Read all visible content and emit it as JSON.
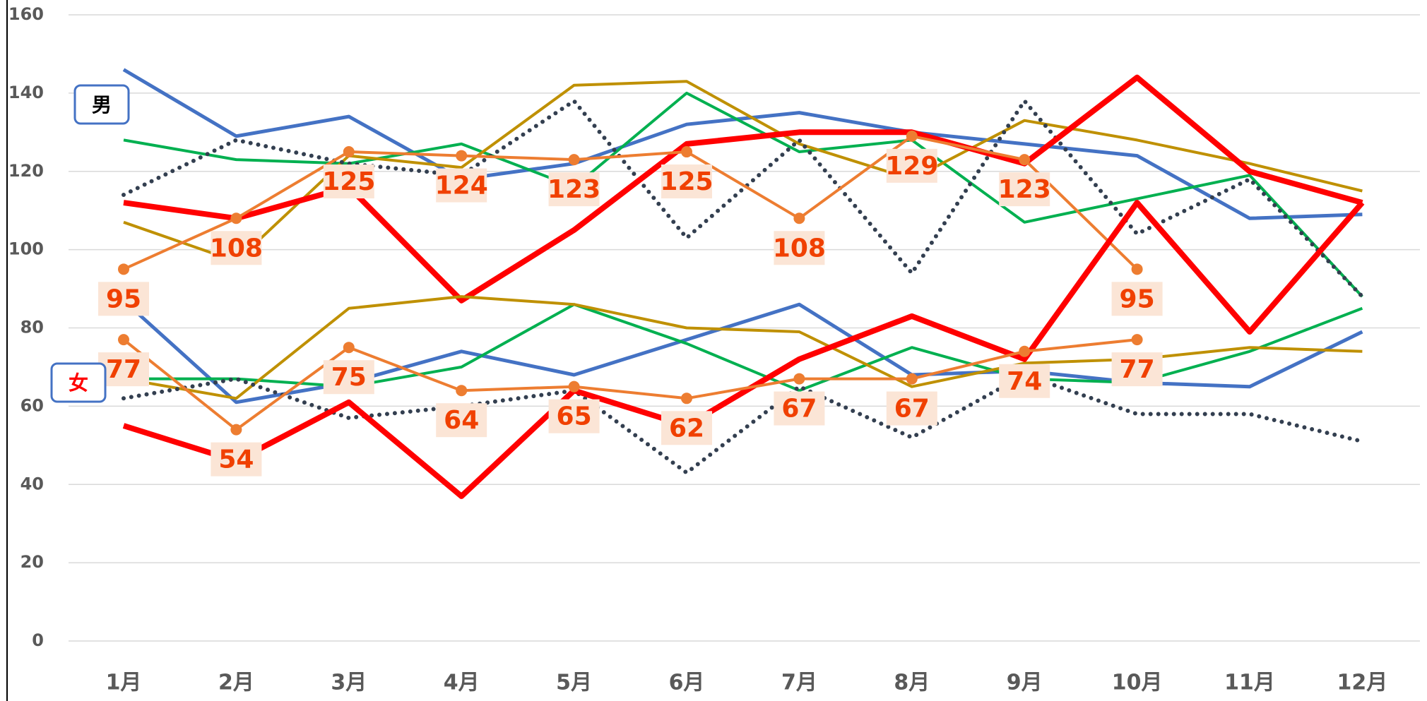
{
  "chart_data": {
    "type": "line",
    "categories": [
      "1月",
      "2月",
      "3月",
      "4月",
      "5月",
      "6月",
      "7月",
      "8月",
      "9月",
      "10月",
      "11月",
      "12月"
    ],
    "ylim": [
      0,
      160
    ],
    "yticks": [
      0,
      20,
      40,
      60,
      80,
      100,
      120,
      140,
      160
    ],
    "grid": true,
    "annotations": [
      "男",
      "女"
    ],
    "series": [
      {
        "color": "#4472c4",
        "width": 5,
        "values": [
          146,
          129,
          134,
          118,
          122,
          132,
          135,
          130,
          127,
          124,
          108,
          109
        ]
      },
      {
        "color": "#00b050",
        "width": 4,
        "values": [
          128,
          123,
          122,
          127,
          116,
          140,
          125,
          128,
          107,
          113,
          119,
          88
        ]
      },
      {
        "color": "#bf9000",
        "width": 4,
        "values": [
          107,
          97,
          124,
          121,
          142,
          143,
          127,
          118,
          133,
          128,
          122,
          115
        ]
      },
      {
        "color": "#333f50",
        "width": 5,
        "dash": "dotted",
        "values": [
          114,
          128,
          122,
          119,
          138,
          103,
          128,
          94,
          138,
          104,
          118,
          88
        ]
      },
      {
        "color": "#ff0000",
        "width": 8,
        "values": [
          112,
          108,
          116,
          87,
          105,
          127,
          130,
          130,
          122,
          144,
          120,
          112
        ]
      },
      {
        "color": "#ed7d31",
        "width": 4,
        "markers": true,
        "data_labels": true,
        "values": [
          95,
          108,
          125,
          124,
          123,
          125,
          108,
          129,
          123,
          95,
          null,
          null
        ]
      },
      {
        "color": "#4472c4",
        "width": 5,
        "values": [
          87,
          61,
          66,
          74,
          68,
          77,
          86,
          68,
          69,
          66,
          65,
          79
        ]
      },
      {
        "color": "#00b050",
        "width": 4,
        "values": [
          67,
          67,
          65,
          70,
          86,
          76,
          64,
          75,
          67,
          66,
          74,
          85
        ]
      },
      {
        "color": "#bf9000",
        "width": 4,
        "values": [
          67,
          62,
          85,
          88,
          86,
          80,
          79,
          65,
          71,
          72,
          75,
          74
        ]
      },
      {
        "color": "#333f50",
        "width": 5,
        "dash": "dotted",
        "values": [
          62,
          67,
          57,
          60,
          64,
          43,
          65,
          52,
          68,
          58,
          58,
          51
        ]
      },
      {
        "color": "#ff0000",
        "width": 8,
        "values": [
          55,
          46,
          61,
          37,
          64,
          55,
          72,
          83,
          72,
          112,
          79,
          112
        ]
      },
      {
        "color": "#ed7d31",
        "width": 4,
        "markers": true,
        "data_labels": true,
        "values": [
          77,
          54,
          75,
          64,
          65,
          62,
          67,
          67,
          74,
          77,
          null,
          null
        ]
      }
    ]
  }
}
